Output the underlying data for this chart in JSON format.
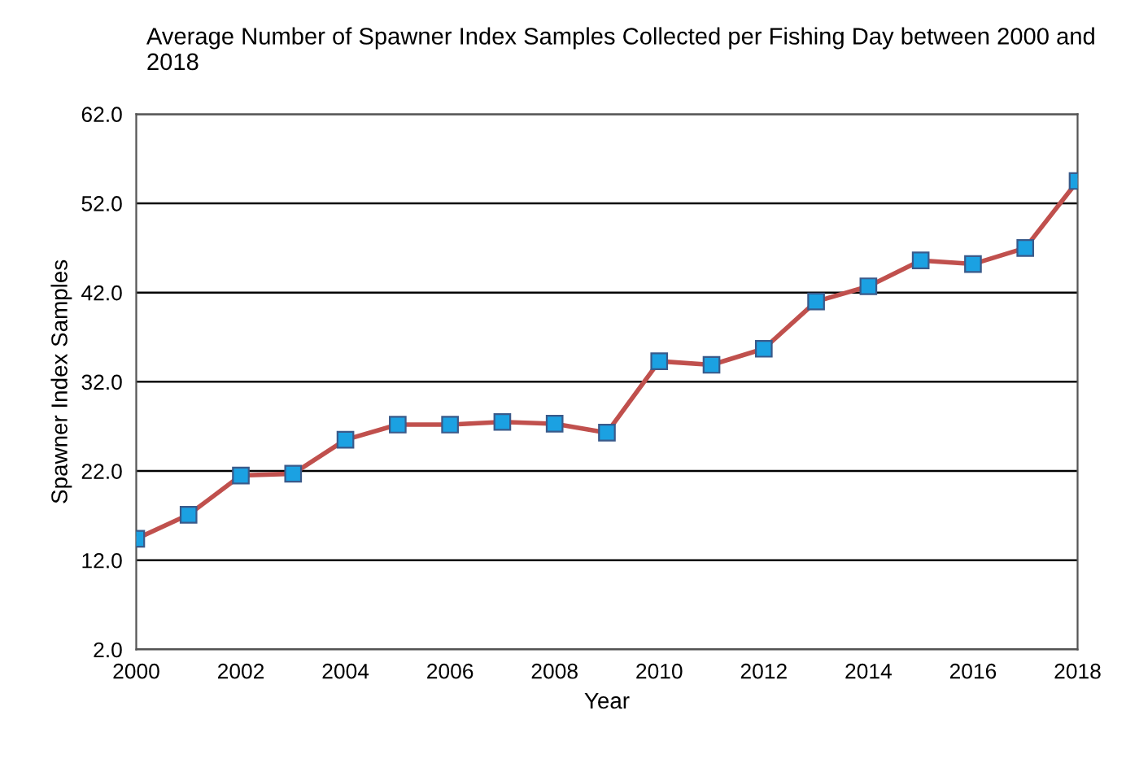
{
  "chart_data": {
    "type": "line",
    "title": "Average Number of Spawner Index Samples Collected per Fishing Day between 2000 and 2018",
    "xlabel": "Year",
    "ylabel": "Spawner Index Samples",
    "x": [
      2000,
      2001,
      2002,
      2003,
      2004,
      2005,
      2006,
      2007,
      2008,
      2009,
      2010,
      2011,
      2012,
      2013,
      2014,
      2015,
      2016,
      2017,
      2018
    ],
    "series": [
      {
        "color": "#c0504d",
        "values": [
          14.4,
          17.1,
          21.5,
          21.7,
          25.5,
          27.2,
          27.2,
          27.5,
          27.3,
          26.3,
          34.3,
          33.9,
          35.7,
          41.0,
          42.7,
          45.6,
          45.2,
          47.0,
          54.5
        ]
      }
    ],
    "xlim": [
      2000,
      2018
    ],
    "xticks": [
      2000,
      2002,
      2004,
      2006,
      2008,
      2010,
      2012,
      2014,
      2016,
      2018
    ],
    "ylim": [
      2,
      62
    ],
    "yticks": [
      {
        "value": 2,
        "label": "2.0"
      },
      {
        "value": 12,
        "label": "12.0"
      },
      {
        "value": 22,
        "label": "22.0"
      },
      {
        "value": 32,
        "label": "32.0"
      },
      {
        "value": 42,
        "label": "42.0"
      },
      {
        "value": 52,
        "label": "52.0"
      },
      {
        "value": 62,
        "label": "62.0"
      }
    ],
    "grid": "y",
    "marker": "square",
    "line_style": "solid"
  }
}
